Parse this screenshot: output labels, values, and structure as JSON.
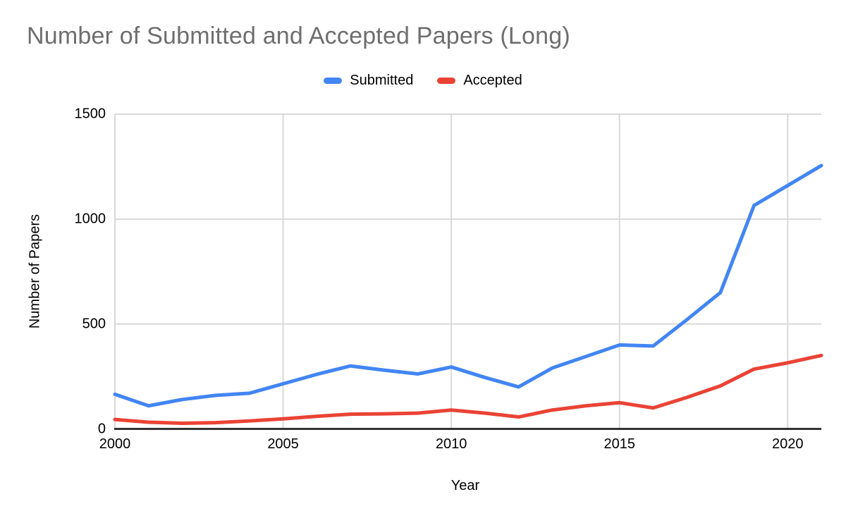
{
  "chart_data": {
    "type": "line",
    "title": "Number of Submitted and Accepted Papers (Long)",
    "xlabel": "Year",
    "ylabel": "Number of Papers",
    "x": [
      2000,
      2001,
      2002,
      2003,
      2004,
      2005,
      2006,
      2007,
      2008,
      2009,
      2010,
      2011,
      2012,
      2013,
      2014,
      2015,
      2016,
      2017,
      2018,
      2019,
      2020,
      2021
    ],
    "series": [
      {
        "name": "Submitted",
        "color": "#4285f4",
        "values": [
          165,
          110,
          140,
          160,
          170,
          215,
          260,
          300,
          280,
          262,
          295,
          245,
          200,
          290,
          345,
          400,
          395,
          520,
          650,
          1065,
          1160,
          1255
        ]
      },
      {
        "name": "Accepted",
        "color": "#ea4335",
        "values": [
          45,
          32,
          27,
          30,
          38,
          48,
          60,
          70,
          72,
          75,
          90,
          75,
          57,
          90,
          110,
          125,
          100,
          150,
          205,
          285,
          315,
          350
        ]
      }
    ],
    "xlim": [
      2000,
      2021
    ],
    "ylim": [
      0,
      1500
    ],
    "xticks": [
      2000,
      2005,
      2010,
      2015,
      2020
    ],
    "yticks": [
      0,
      500,
      1000,
      1500
    ],
    "grid": true,
    "legend_position": "top"
  },
  "colors": {
    "title_text": "#6e6e6e",
    "tick_text": "#000000",
    "gridline": "#d9d9d9",
    "axis_line": "#333333",
    "background": "#ffffff"
  }
}
